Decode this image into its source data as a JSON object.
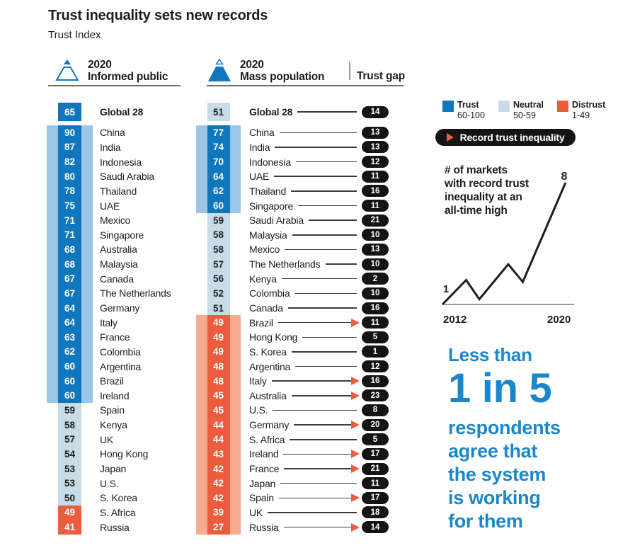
{
  "title": "Trust inequality sets new records",
  "subtitle": "Trust Index",
  "columns": {
    "informed": {
      "year": "2020",
      "label": "Informed public"
    },
    "mass": {
      "year": "2020",
      "label": "Mass population"
    },
    "gap_header": "Trust gap"
  },
  "legend": [
    {
      "label": "Trust",
      "range": "60-100",
      "color": "#1177bd"
    },
    {
      "label": "Neutral",
      "range": "50-59",
      "color": "#c8dce8"
    },
    {
      "label": "Distrust",
      "range": "1-49",
      "color": "#ec5c3d"
    }
  ],
  "record_badge": {
    "label": "Record trust inequality"
  },
  "colors": {
    "trust": "#1177bd",
    "neutral": "#c8dce8",
    "distrust": "#ec5c3d",
    "band_trust": "#9fc5e6",
    "band_distrust": "#f5ab90",
    "gap_pill": "#141414",
    "statement_text": "#1b87ca"
  },
  "chart_data": [
    {
      "type": "table",
      "title": "Trust Index",
      "tone_scale": {
        "trust": "60-100",
        "neutral": "50-59",
        "distrust": "1-49"
      },
      "groups": [
        {
          "name": "2020 Informed public",
          "rows": [
            {
              "market": "Global 28",
              "value": 65,
              "tone": "trust",
              "band": null
            },
            {
              "market": "China",
              "value": 90,
              "tone": "trust",
              "band": "blue"
            },
            {
              "market": "India",
              "value": 87,
              "tone": "trust",
              "band": "blue"
            },
            {
              "market": "Indonesia",
              "value": 82,
              "tone": "trust",
              "band": "blue"
            },
            {
              "market": "Saudi Arabia",
              "value": 80,
              "tone": "trust",
              "band": "blue"
            },
            {
              "market": "Thailand",
              "value": 78,
              "tone": "trust",
              "band": "blue"
            },
            {
              "market": "UAE",
              "value": 75,
              "tone": "trust",
              "band": "blue"
            },
            {
              "market": "Mexico",
              "value": 71,
              "tone": "trust",
              "band": "blue"
            },
            {
              "market": "Singapore",
              "value": 71,
              "tone": "trust",
              "band": "blue"
            },
            {
              "market": "Australia",
              "value": 68,
              "tone": "trust",
              "band": "blue"
            },
            {
              "market": "Malaysia",
              "value": 68,
              "tone": "trust",
              "band": "blue"
            },
            {
              "market": "Canada",
              "value": 67,
              "tone": "trust",
              "band": "blue"
            },
            {
              "market": "The Netherlands",
              "value": 67,
              "tone": "trust",
              "band": "blue"
            },
            {
              "market": "Germany",
              "value": 64,
              "tone": "trust",
              "band": "blue"
            },
            {
              "market": "Italy",
              "value": 64,
              "tone": "trust",
              "band": "blue"
            },
            {
              "market": "France",
              "value": 63,
              "tone": "trust",
              "band": "blue"
            },
            {
              "market": "Colombia",
              "value": 62,
              "tone": "trust",
              "band": "blue"
            },
            {
              "market": "Argentina",
              "value": 60,
              "tone": "trust",
              "band": "blue"
            },
            {
              "market": "Brazil",
              "value": 60,
              "tone": "trust",
              "band": "blue"
            },
            {
              "market": "Ireland",
              "value": 60,
              "tone": "trust",
              "band": "blue"
            },
            {
              "market": "Spain",
              "value": 59,
              "tone": "neutral",
              "band": null
            },
            {
              "market": "Kenya",
              "value": 58,
              "tone": "neutral",
              "band": null
            },
            {
              "market": "UK",
              "value": 57,
              "tone": "neutral",
              "band": null
            },
            {
              "market": "Hong Kong",
              "value": 54,
              "tone": "neutral",
              "band": null
            },
            {
              "market": "Japan",
              "value": 53,
              "tone": "neutral",
              "band": null
            },
            {
              "market": "U.S.",
              "value": 53,
              "tone": "neutral",
              "band": null
            },
            {
              "market": "S. Korea",
              "value": 50,
              "tone": "neutral",
              "band": null
            },
            {
              "market": "S. Africa",
              "value": 49,
              "tone": "distrust",
              "band": null
            },
            {
              "market": "Russia",
              "value": 41,
              "tone": "distrust",
              "band": null
            }
          ]
        },
        {
          "name": "2020 Mass population",
          "rows": [
            {
              "market": "Global 28",
              "value": 51,
              "tone": "neutral",
              "band": null,
              "gap": 14,
              "record": false
            },
            {
              "market": "China",
              "value": 77,
              "tone": "trust",
              "band": "blue",
              "gap": 13,
              "record": false
            },
            {
              "market": "India",
              "value": 74,
              "tone": "trust",
              "band": "blue",
              "gap": 13,
              "record": false
            },
            {
              "market": "Indonesia",
              "value": 70,
              "tone": "trust",
              "band": "blue",
              "gap": 12,
              "record": false
            },
            {
              "market": "UAE",
              "value": 64,
              "tone": "trust",
              "band": "blue",
              "gap": 11,
              "record": false
            },
            {
              "market": "Thailand",
              "value": 62,
              "tone": "trust",
              "band": "blue",
              "gap": 16,
              "record": false
            },
            {
              "market": "Singapore",
              "value": 60,
              "tone": "trust",
              "band": "blue",
              "gap": 11,
              "record": false
            },
            {
              "market": "Saudi Arabia",
              "value": 59,
              "tone": "neutral",
              "band": null,
              "gap": 21,
              "record": false
            },
            {
              "market": "Malaysia",
              "value": 58,
              "tone": "neutral",
              "band": null,
              "gap": 10,
              "record": false
            },
            {
              "market": "Mexico",
              "value": 58,
              "tone": "neutral",
              "band": null,
              "gap": 13,
              "record": false
            },
            {
              "market": "The Netherlands",
              "value": 57,
              "tone": "neutral",
              "band": null,
              "gap": 10,
              "record": false
            },
            {
              "market": "Kenya",
              "value": 56,
              "tone": "neutral",
              "band": null,
              "gap": 2,
              "record": false
            },
            {
              "market": "Colombia",
              "value": 52,
              "tone": "neutral",
              "band": null,
              "gap": 10,
              "record": false
            },
            {
              "market": "Canada",
              "value": 51,
              "tone": "neutral",
              "band": null,
              "gap": 16,
              "record": false
            },
            {
              "market": "Brazil",
              "value": 49,
              "tone": "distrust",
              "band": "orange",
              "gap": 11,
              "record": true
            },
            {
              "market": "Hong Kong",
              "value": 49,
              "tone": "distrust",
              "band": "orange",
              "gap": 5,
              "record": false
            },
            {
              "market": "S. Korea",
              "value": 49,
              "tone": "distrust",
              "band": "orange",
              "gap": 1,
              "record": false
            },
            {
              "market": "Argentina",
              "value": 48,
              "tone": "distrust",
              "band": "orange",
              "gap": 12,
              "record": false
            },
            {
              "market": "Italy",
              "value": 48,
              "tone": "distrust",
              "band": "orange",
              "gap": 16,
              "record": true
            },
            {
              "market": "Australia",
              "value": 45,
              "tone": "distrust",
              "band": "orange",
              "gap": 23,
              "record": true
            },
            {
              "market": "U.S.",
              "value": 45,
              "tone": "distrust",
              "band": "orange",
              "gap": 8,
              "record": false
            },
            {
              "market": "Germany",
              "value": 44,
              "tone": "distrust",
              "band": "orange",
              "gap": 20,
              "record": true
            },
            {
              "market": "S. Africa",
              "value": 44,
              "tone": "distrust",
              "band": "orange",
              "gap": 5,
              "record": false
            },
            {
              "market": "Ireland",
              "value": 43,
              "tone": "distrust",
              "band": "orange",
              "gap": 17,
              "record": true
            },
            {
              "market": "France",
              "value": 42,
              "tone": "distrust",
              "band": "orange",
              "gap": 21,
              "record": true
            },
            {
              "market": "Japan",
              "value": 42,
              "tone": "distrust",
              "band": "orange",
              "gap": 11,
              "record": false
            },
            {
              "market": "Spain",
              "value": 42,
              "tone": "distrust",
              "band": "orange",
              "gap": 17,
              "record": true
            },
            {
              "market": "UK",
              "value": 39,
              "tone": "distrust",
              "band": "orange",
              "gap": 18,
              "record": false
            },
            {
              "market": "Russia",
              "value": 27,
              "tone": "distrust",
              "band": "orange",
              "gap": 14,
              "record": true
            }
          ]
        }
      ]
    },
    {
      "type": "line",
      "title": "# of markets with record trust inequality at an all-time high",
      "title_lines": [
        "# of markets",
        "with record trust",
        "inequality at an",
        "all-time high"
      ],
      "x_ticks": [
        "2012",
        "2020"
      ],
      "values": [
        1,
        2,
        1,
        3,
        2,
        8
      ],
      "start_label": "1",
      "end_label": "8",
      "ylim": [
        0,
        8
      ],
      "points_draw": [
        {
          "xf": 0.0,
          "yf": 0.0
        },
        {
          "xf": 0.18,
          "yf": 0.2
        },
        {
          "xf": 0.28,
          "yf": 0.043
        },
        {
          "xf": 0.5,
          "yf": 0.33
        },
        {
          "xf": 0.61,
          "yf": 0.185
        },
        {
          "xf": 0.935,
          "yf": 1.0
        }
      ]
    }
  ],
  "statement": {
    "intro": "Less than",
    "big": "1 in 5",
    "lines": [
      "respondents",
      "agree that",
      "the system",
      "is working",
      "for them"
    ]
  }
}
